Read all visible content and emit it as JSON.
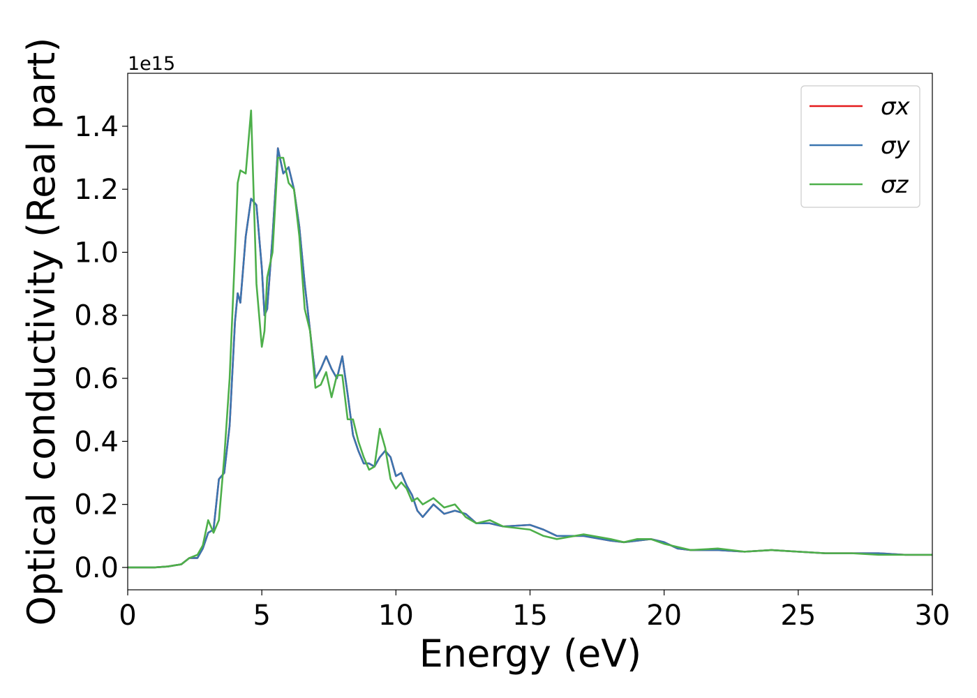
{
  "chart_data": {
    "type": "line",
    "xlabel": "Energy (eV)",
    "ylabel": "Optical conductivity (Real part)",
    "y_offset_text": "1e15",
    "legend": "upper right",
    "grid": false,
    "xlim": [
      0,
      30
    ],
    "ylim": [
      -0.071,
      1.568
    ],
    "xticks": [
      0,
      5,
      10,
      15,
      20,
      25,
      30
    ],
    "yticks": [
      {
        "value": 0,
        "label": "0.0"
      },
      0.2,
      0.4,
      0.6,
      0.8,
      {
        "value": 1,
        "label": "1.0"
      },
      1.2,
      1.4
    ],
    "x": [
      0,
      1,
      1.5,
      2,
      2.3,
      2.6,
      2.8,
      3.0,
      3.2,
      3.4,
      3.6,
      3.8,
      4.0,
      4.1,
      4.2,
      4.4,
      4.6,
      4.8,
      5.0,
      5.1,
      5.2,
      5.4,
      5.6,
      5.8,
      6.0,
      6.2,
      6.4,
      6.6,
      6.8,
      7.0,
      7.2,
      7.4,
      7.6,
      7.8,
      8.0,
      8.2,
      8.4,
      8.6,
      8.8,
      9.0,
      9.2,
      9.4,
      9.6,
      9.8,
      10.0,
      10.2,
      10.4,
      10.6,
      10.8,
      11.0,
      11.4,
      11.8,
      12.2,
      12.6,
      13.0,
      13.5,
      14,
      15,
      15.5,
      16,
      17,
      18,
      18.5,
      19,
      19.5,
      20,
      20.5,
      21,
      22,
      23,
      24,
      25,
      26,
      27,
      28,
      29,
      30
    ],
    "series": [
      {
        "name": "σx",
        "color": "#e41a1c",
        "values": [
          0,
          0,
          0.003,
          0.01,
          0.03,
          0.03,
          0.06,
          0.11,
          0.12,
          0.28,
          0.3,
          0.45,
          0.78,
          0.87,
          0.84,
          1.05,
          1.17,
          1.15,
          0.95,
          0.8,
          0.82,
          1.05,
          1.33,
          1.25,
          1.27,
          1.2,
          1.08,
          0.9,
          0.75,
          0.6,
          0.63,
          0.67,
          0.63,
          0.6,
          0.67,
          0.55,
          0.42,
          0.37,
          0.33,
          0.33,
          0.32,
          0.35,
          0.37,
          0.35,
          0.29,
          0.3,
          0.26,
          0.23,
          0.18,
          0.16,
          0.2,
          0.17,
          0.18,
          0.17,
          0.14,
          0.14,
          0.13,
          0.135,
          0.12,
          0.1,
          0.1,
          0.085,
          0.08,
          0.085,
          0.09,
          0.08,
          0.06,
          0.055,
          0.055,
          0.05,
          0.055,
          0.05,
          0.045,
          0.045,
          0.045,
          0.04,
          0.04
        ]
      },
      {
        "name": "σy",
        "color": "#3a75b0",
        "values": [
          0,
          0,
          0.003,
          0.01,
          0.03,
          0.03,
          0.06,
          0.11,
          0.12,
          0.28,
          0.3,
          0.45,
          0.78,
          0.87,
          0.84,
          1.05,
          1.17,
          1.15,
          0.95,
          0.8,
          0.82,
          1.05,
          1.33,
          1.25,
          1.27,
          1.2,
          1.08,
          0.9,
          0.75,
          0.6,
          0.63,
          0.67,
          0.63,
          0.6,
          0.67,
          0.55,
          0.42,
          0.37,
          0.33,
          0.33,
          0.32,
          0.35,
          0.37,
          0.35,
          0.29,
          0.3,
          0.26,
          0.23,
          0.18,
          0.16,
          0.2,
          0.17,
          0.18,
          0.17,
          0.14,
          0.14,
          0.13,
          0.135,
          0.12,
          0.1,
          0.1,
          0.085,
          0.08,
          0.085,
          0.09,
          0.08,
          0.06,
          0.055,
          0.055,
          0.05,
          0.055,
          0.05,
          0.045,
          0.045,
          0.045,
          0.04,
          0.04
        ]
      },
      {
        "name": "σz",
        "color": "#4daf4a",
        "values": [
          0,
          0,
          0.003,
          0.01,
          0.03,
          0.04,
          0.07,
          0.15,
          0.11,
          0.15,
          0.35,
          0.6,
          1.0,
          1.22,
          1.26,
          1.25,
          1.45,
          0.9,
          0.7,
          0.75,
          0.92,
          1.0,
          1.3,
          1.3,
          1.22,
          1.2,
          1.05,
          0.82,
          0.75,
          0.57,
          0.58,
          0.62,
          0.54,
          0.61,
          0.61,
          0.47,
          0.47,
          0.4,
          0.35,
          0.31,
          0.32,
          0.44,
          0.38,
          0.28,
          0.25,
          0.27,
          0.25,
          0.21,
          0.22,
          0.2,
          0.22,
          0.19,
          0.2,
          0.16,
          0.14,
          0.15,
          0.13,
          0.12,
          0.1,
          0.09,
          0.105,
          0.09,
          0.08,
          0.09,
          0.09,
          0.075,
          0.065,
          0.055,
          0.06,
          0.05,
          0.055,
          0.05,
          0.045,
          0.045,
          0.04,
          0.04,
          0.04
        ]
      }
    ]
  }
}
